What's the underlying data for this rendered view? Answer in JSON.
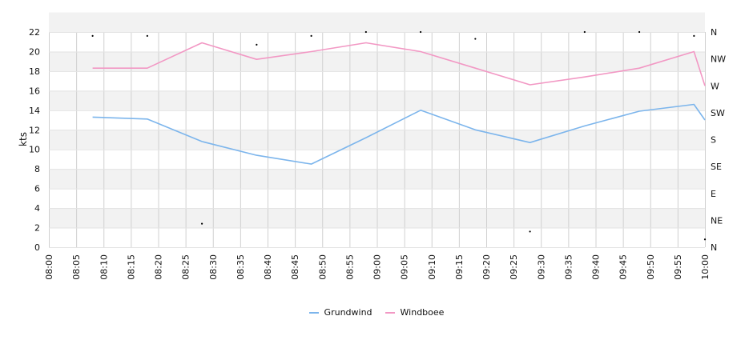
{
  "chart_data": {
    "type": "line",
    "ylabel": "kts",
    "ylim": [
      0,
      22
    ],
    "y_ticks": [
      "0",
      "2",
      "4",
      "6",
      "8",
      "10",
      "12",
      "14",
      "16",
      "18",
      "20",
      "22"
    ],
    "x_tick_labels": [
      "08:00",
      "08:05",
      "08:10",
      "08:15",
      "08:20",
      "08:25",
      "08:30",
      "08:35",
      "08:40",
      "08:45",
      "08:50",
      "08:55",
      "09:00",
      "09:05",
      "09:10",
      "09:15",
      "09:20",
      "09:25",
      "09:30",
      "09:35",
      "09:40",
      "09:45",
      "09:50",
      "09:55",
      "10:00"
    ],
    "x_range": [
      "08:00",
      "10:00"
    ],
    "right_axis": {
      "labels": [
        "N",
        "NE",
        "E",
        "SE",
        "S",
        "SW",
        "W",
        "NW",
        "N"
      ]
    },
    "series": [
      {
        "name": "Grundwind",
        "color": "#7cb5ec",
        "x": [
          "08:08",
          "08:18",
          "08:28",
          "08:38",
          "08:48",
          "08:58",
          "09:08",
          "09:18",
          "09:28",
          "09:38",
          "09:48",
          "09:58",
          "10:00"
        ],
        "values": [
          13.3,
          13.1,
          10.8,
          9.4,
          8.5,
          11.2,
          14.0,
          12.0,
          10.7,
          12.4,
          13.9,
          14.6,
          13.0
        ]
      },
      {
        "name": "Windboee",
        "color": "#f298c4",
        "x": [
          "08:08",
          "08:18",
          "08:28",
          "08:38",
          "08:48",
          "08:58",
          "09:08",
          "09:18",
          "09:28",
          "09:38",
          "09:48",
          "09:58",
          "10:00"
        ],
        "values": [
          18.3,
          18.3,
          20.9,
          19.2,
          20.0,
          20.9,
          20.0,
          18.3,
          16.6,
          17.4,
          18.3,
          20.0,
          16.5
        ]
      }
    ],
    "direction_points": {
      "x": [
        "08:08",
        "08:18",
        "08:28",
        "08:38",
        "08:48",
        "08:58",
        "09:08",
        "09:18",
        "09:28",
        "09:38",
        "09:48",
        "09:58",
        "10:00"
      ],
      "values": [
        21.6,
        21.6,
        2.4,
        20.7,
        21.6,
        22.0,
        22.0,
        21.3,
        1.6,
        22.0,
        22.0,
        21.6,
        0.8
      ]
    },
    "grid": true,
    "alternate_bands": true,
    "legend_position": "bottom-center"
  }
}
